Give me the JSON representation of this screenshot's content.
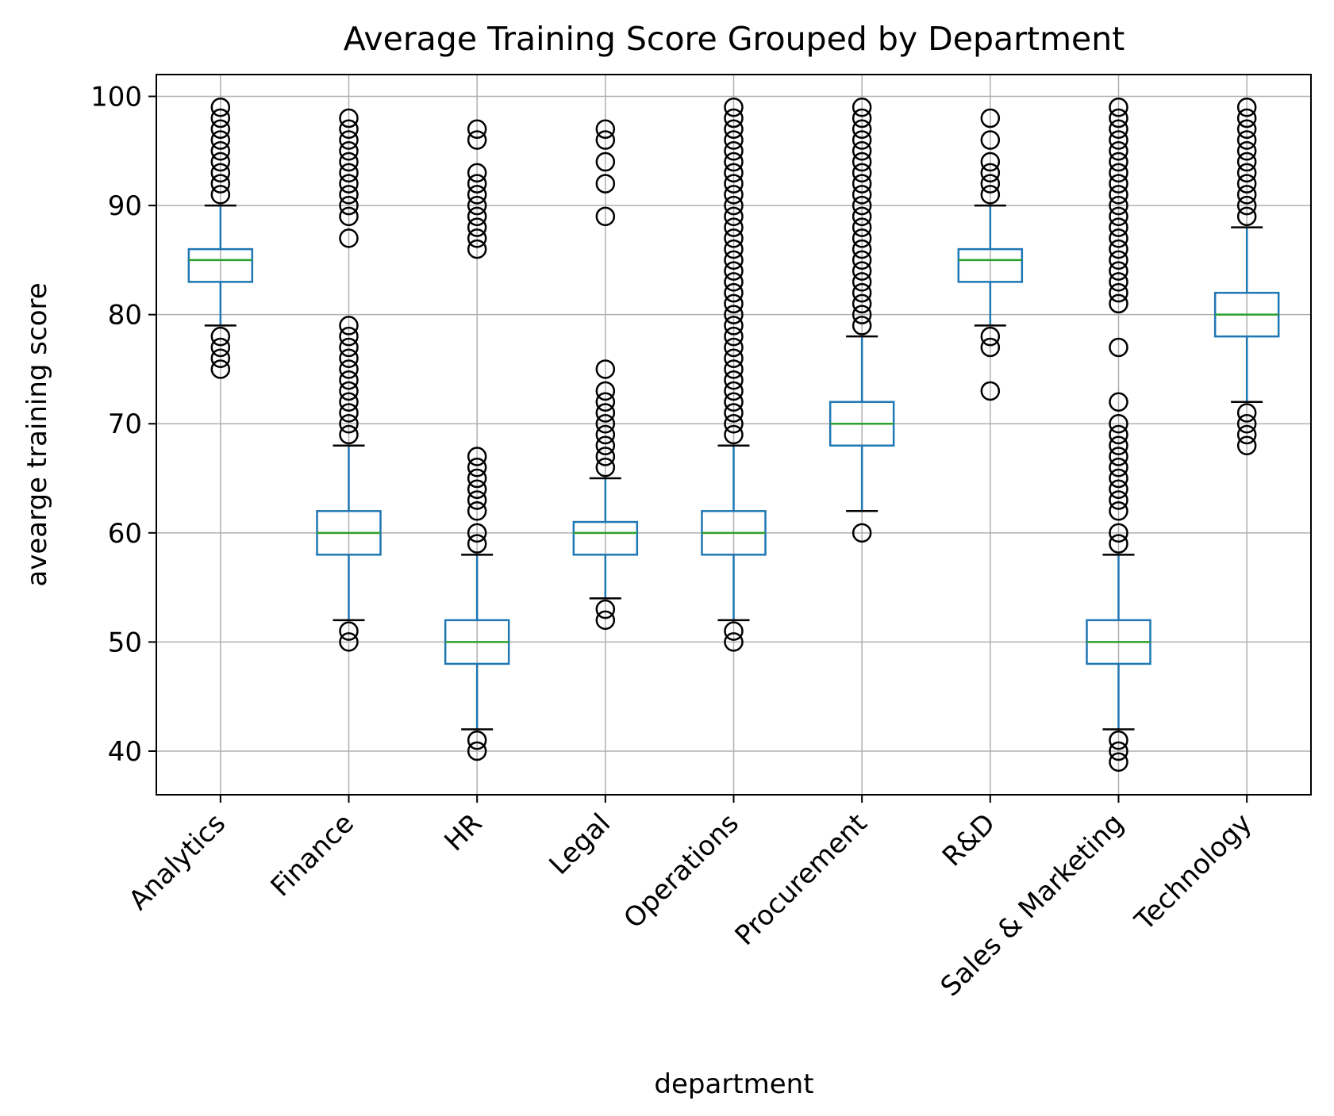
{
  "chart_data": {
    "type": "box",
    "title": "Average Training Score Grouped by Department",
    "xlabel": "department",
    "ylabel": "avearge training score",
    "ylim": [
      36,
      102
    ],
    "yticks": [
      40,
      50,
      60,
      70,
      80,
      90,
      100
    ],
    "grid": true,
    "colors": {
      "box": "#1f77b4",
      "median": "#2ca02c",
      "cap": "#000000",
      "flier": "#000000",
      "grid": "#b0b0b0"
    },
    "categories": [
      "Analytics",
      "Finance",
      "HR",
      "Legal",
      "Operations",
      "Procurement",
      "R&D",
      "Sales & Marketing",
      "Technology"
    ],
    "boxes": [
      {
        "category": "Analytics",
        "whislo": 79,
        "q1": 83,
        "med": 85,
        "q3": 86,
        "whishi": 90,
        "fliers": [
          75,
          76,
          77,
          78,
          91,
          92,
          93,
          94,
          95,
          96,
          97,
          98,
          99
        ]
      },
      {
        "category": "Finance",
        "whislo": 52,
        "q1": 58,
        "med": 60,
        "q3": 62,
        "whishi": 68,
        "fliers": [
          50,
          51,
          69,
          70,
          71,
          72,
          73,
          74,
          75,
          76,
          77,
          78,
          79,
          87,
          89,
          90,
          91,
          92,
          93,
          94,
          95,
          96,
          97,
          98
        ]
      },
      {
        "category": "HR",
        "whislo": 42,
        "q1": 48,
        "med": 50,
        "q3": 52,
        "whishi": 58,
        "fliers": [
          40,
          41,
          59,
          60,
          62,
          63,
          64,
          65,
          66,
          67,
          86,
          87,
          88,
          89,
          90,
          91,
          92,
          93,
          96,
          97
        ]
      },
      {
        "category": "Legal",
        "whislo": 54,
        "q1": 58,
        "med": 60,
        "q3": 61,
        "whishi": 65,
        "fliers": [
          52,
          53,
          66,
          67,
          68,
          69,
          70,
          71,
          72,
          73,
          75,
          89,
          92,
          94,
          96,
          97
        ]
      },
      {
        "category": "Operations",
        "whislo": 52,
        "q1": 58,
        "med": 60,
        "q3": 62,
        "whishi": 68,
        "fliers": [
          50,
          51,
          69,
          70,
          71,
          72,
          73,
          74,
          75,
          76,
          77,
          78,
          79,
          80,
          81,
          82,
          83,
          84,
          85,
          86,
          87,
          88,
          89,
          90,
          91,
          92,
          93,
          94,
          95,
          96,
          97,
          98,
          99
        ]
      },
      {
        "category": "Procurement",
        "whislo": 62,
        "q1": 68,
        "med": 70,
        "q3": 72,
        "whishi": 78,
        "fliers": [
          60,
          79,
          80,
          81,
          82,
          83,
          84,
          85,
          86,
          87,
          88,
          89,
          90,
          91,
          92,
          93,
          94,
          95,
          96,
          97,
          98,
          99
        ]
      },
      {
        "category": "R&D",
        "whislo": 79,
        "q1": 83,
        "med": 85,
        "q3": 86,
        "whishi": 90,
        "fliers": [
          73,
          77,
          78,
          91,
          92,
          93,
          94,
          96,
          98
        ]
      },
      {
        "category": "Sales & Marketing",
        "whislo": 42,
        "q1": 48,
        "med": 50,
        "q3": 52,
        "whishi": 58,
        "fliers": [
          39,
          40,
          41,
          59,
          60,
          62,
          63,
          64,
          65,
          66,
          67,
          68,
          69,
          70,
          72,
          77,
          81,
          82,
          83,
          84,
          85,
          86,
          87,
          88,
          89,
          90,
          91,
          92,
          93,
          94,
          95,
          96,
          97,
          98,
          99
        ]
      },
      {
        "category": "Technology",
        "whislo": 72,
        "q1": 78,
        "med": 80,
        "q3": 82,
        "whishi": 88,
        "fliers": [
          68,
          69,
          70,
          71,
          89,
          90,
          91,
          92,
          93,
          94,
          95,
          96,
          97,
          98,
          99
        ]
      }
    ]
  }
}
